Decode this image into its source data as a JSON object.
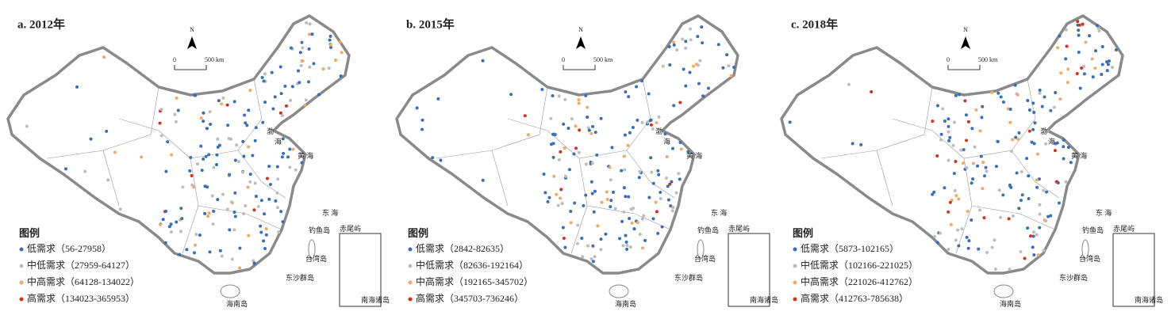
{
  "panels": [
    {
      "title": "a. 2012年",
      "legend": {
        "title": "图例",
        "items": [
          {
            "label": "低需求（56-27958）",
            "color": "#3a6fb7"
          },
          {
            "label": "中低需求（27959-64127）",
            "color": "#bdbdbd"
          },
          {
            "label": "中高需求（64128-134022）",
            "color": "#f4a868"
          },
          {
            "label": "高需求（134023-365953）",
            "color": "#d7301f"
          }
        ]
      }
    },
    {
      "title": "b. 2015年",
      "legend": {
        "title": "图例",
        "items": [
          {
            "label": "低需求（2842-82635）",
            "color": "#3a6fb7"
          },
          {
            "label": "中低需求（82636-192164）",
            "color": "#bdbdbd"
          },
          {
            "label": "中高需求（192165-345702）",
            "color": "#f4a868"
          },
          {
            "label": "高需求（345703-736246）",
            "color": "#d7301f"
          }
        ]
      }
    },
    {
      "title": "c. 2018年",
      "legend": {
        "title": "图例",
        "items": [
          {
            "label": "低需求（5873-102165）",
            "color": "#3a6fb7"
          },
          {
            "label": "中低需求（102166-221025）",
            "color": "#bdbdbd"
          },
          {
            "label": "中高需求（221026-412762）",
            "color": "#f4a868"
          },
          {
            "label": "高需求（412763-785638）",
            "color": "#d7301f"
          }
        ]
      }
    }
  ],
  "north": "N",
  "scale_zero": "0",
  "scale_distance": "500 km",
  "places": [
    "渤",
    "海",
    "黄 海",
    "东 海",
    "钓鱼岛",
    "赤尾屿",
    "台湾岛",
    "东沙群岛",
    "海南岛",
    "南海诸岛"
  ]
}
